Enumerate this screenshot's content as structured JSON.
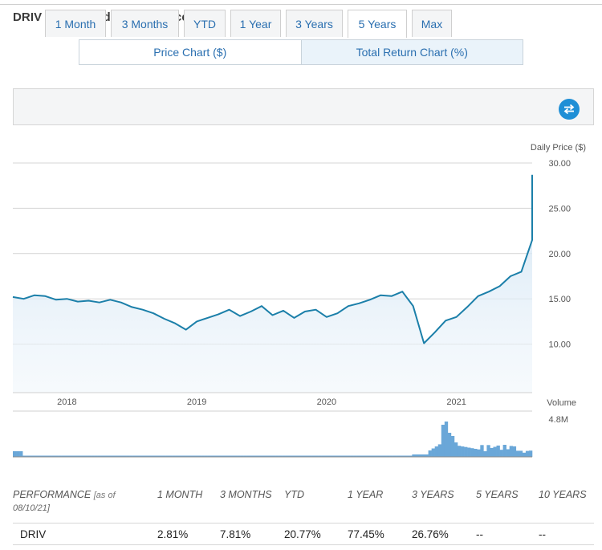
{
  "page": {
    "title": "DRIV Charts And Performance"
  },
  "chart_tabs": [
    {
      "label": "Price Chart ($)",
      "active": false
    },
    {
      "label": "Total Return Chart (%)",
      "active": true
    }
  ],
  "range_tabs": [
    {
      "label": "1 Month",
      "active": false
    },
    {
      "label": "3 Months",
      "active": false
    },
    {
      "label": "YTD",
      "active": false
    },
    {
      "label": "1 Year",
      "active": false
    },
    {
      "label": "3 Years",
      "active": false
    },
    {
      "label": "5 Years",
      "active": true
    },
    {
      "label": "Max",
      "active": false
    }
  ],
  "icons": {
    "swap": "swap-arrows-icon"
  },
  "colors": {
    "line": "#1b7fa9",
    "volume": "#6aa7d8",
    "accent": "#1f8fd6",
    "link": "#2a6fb0"
  },
  "chart_data": [
    {
      "type": "area",
      "ylabel": "Daily Price ($)",
      "ylim": [
        5.5,
        30
      ],
      "yticks": [
        "30.00",
        "25.00",
        "20.00",
        "15.00",
        "10.00"
      ],
      "xticks": [
        "2018",
        "2019",
        "2020",
        "2021"
      ],
      "grid": true,
      "x": [
        "2017-08",
        "2017-09",
        "2017-10",
        "2017-11",
        "2017-12",
        "2018-01",
        "2018-02",
        "2018-03",
        "2018-04",
        "2018-05",
        "2018-06",
        "2018-07",
        "2018-08",
        "2018-09",
        "2018-10",
        "2018-11",
        "2018-12",
        "2019-01",
        "2019-02",
        "2019-03",
        "2019-04",
        "2019-05",
        "2019-06",
        "2019-07",
        "2019-08",
        "2019-09",
        "2019-10",
        "2019-11",
        "2019-12",
        "2020-01",
        "2020-02",
        "2020-03",
        "2020-04",
        "2020-05",
        "2020-06",
        "2020-07",
        "2020-08",
        "2020-09",
        "2020-10",
        "2020-11",
        "2020-12",
        "2021-01",
        "2021-02",
        "2021-03",
        "2021-04",
        "2021-05",
        "2021-06",
        "2021-07",
        "2021-08"
      ],
      "values": [
        15.2,
        15.0,
        15.4,
        15.3,
        14.9,
        15.0,
        14.7,
        14.8,
        14.6,
        14.9,
        14.6,
        14.1,
        13.8,
        13.4,
        12.8,
        12.3,
        11.6,
        12.5,
        12.9,
        13.3,
        13.8,
        13.1,
        13.6,
        14.2,
        13.2,
        13.7,
        12.9,
        13.6,
        13.8,
        13.0,
        13.4,
        14.2,
        14.5,
        14.9,
        15.4,
        15.3,
        15.8,
        14.2,
        10.1,
        11.3,
        12.6,
        13.0,
        14.1,
        15.3,
        15.8,
        16.4,
        17.5,
        18.0,
        21.5
      ]
    },
    {
      "type": "bar",
      "ylabel": "Volume",
      "ymax_label": "4.8M",
      "note": "daily volume bars"
    }
  ],
  "performance": {
    "header_label": "PERFORMANCE",
    "as_of_open": "[as of",
    "as_of_date": "08/10/21]",
    "columns": [
      "1 MONTH",
      "3 MONTHS",
      "YTD",
      "1 YEAR",
      "3 YEARS",
      "5 YEARS",
      "10 YEARS"
    ],
    "rows": [
      {
        "name": "DRIV",
        "values": [
          "2.81%",
          "7.81%",
          "20.77%",
          "77.45%",
          "26.76%",
          "--",
          "--"
        ]
      }
    ]
  }
}
